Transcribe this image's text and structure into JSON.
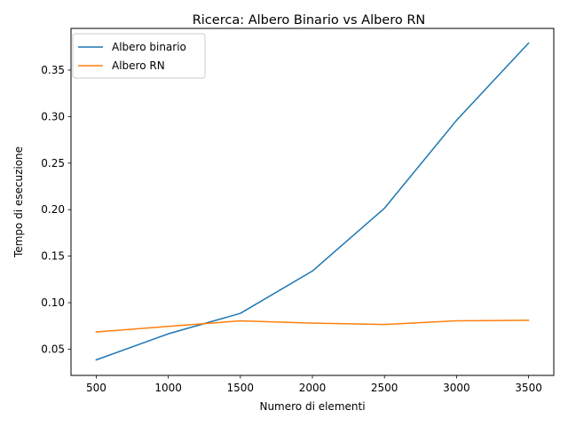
{
  "chart_data": {
    "type": "line",
    "title": "Ricerca: Albero Binario vs Albero RN",
    "xlabel": "Numero di elementi",
    "ylabel": "Tempo di esecuzione",
    "x": [
      500,
      1000,
      1500,
      2000,
      2500,
      3000,
      3500
    ],
    "xlim": [
      325,
      3675
    ],
    "ylim": [
      0.0218,
      0.3948
    ],
    "xticks": [
      500,
      1000,
      1500,
      2000,
      2500,
      3000,
      3500
    ],
    "yticks": [
      0.05,
      0.1,
      0.15,
      0.2,
      0.25,
      0.3,
      0.35
    ],
    "xtick_labels": [
      "500",
      "1000",
      "1500",
      "2000",
      "2500",
      "3000",
      "3500"
    ],
    "ytick_labels": [
      "0.05",
      "0.10",
      "0.15",
      "0.20",
      "0.25",
      "0.30",
      "0.35"
    ],
    "grid": false,
    "legend_position": "top-left",
    "series": [
      {
        "name": "Albero binario",
        "color": "#1f77b4",
        "values": [
          0.0385,
          0.0665,
          0.0885,
          0.134,
          0.2015,
          0.296,
          0.379
        ]
      },
      {
        "name": "Albero RN",
        "color": "#ff7f0e",
        "values": [
          0.0685,
          0.0745,
          0.0805,
          0.078,
          0.0765,
          0.0805,
          0.081
        ]
      }
    ]
  }
}
